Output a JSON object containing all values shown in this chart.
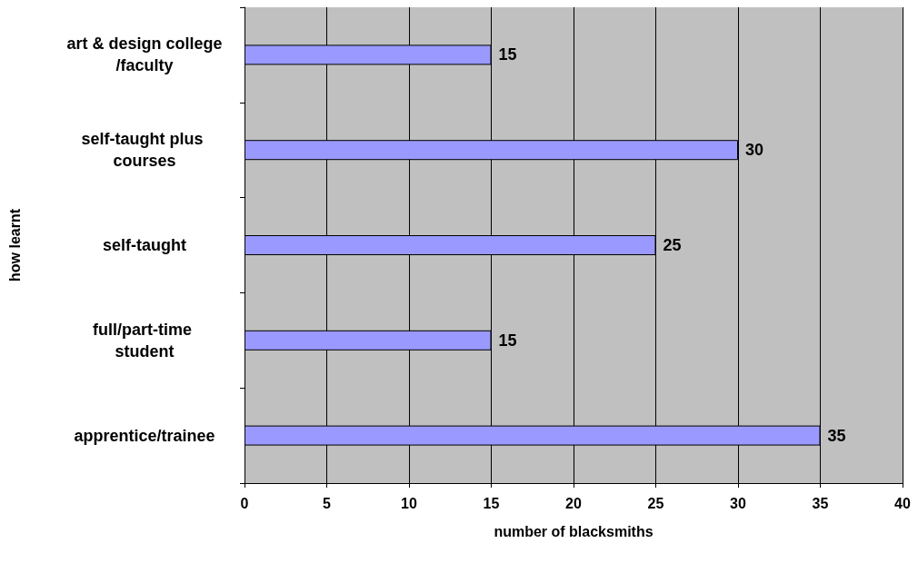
{
  "chart_data": {
    "type": "bar",
    "orientation": "horizontal",
    "xlabel": "number of blacksmiths",
    "ylabel": "how learnt",
    "categories": [
      "art & design college/faculty",
      "self-taught plus courses",
      "self-taught",
      "full/part-time student",
      "apprentice/trainee"
    ],
    "values": [
      15,
      30,
      25,
      15,
      35
    ],
    "color": "#9999ff",
    "xlim": [
      0,
      40
    ],
    "xticks": [
      0,
      5,
      10,
      15,
      20,
      25,
      30,
      35,
      40
    ],
    "grid": "x",
    "data_labels": true
  }
}
